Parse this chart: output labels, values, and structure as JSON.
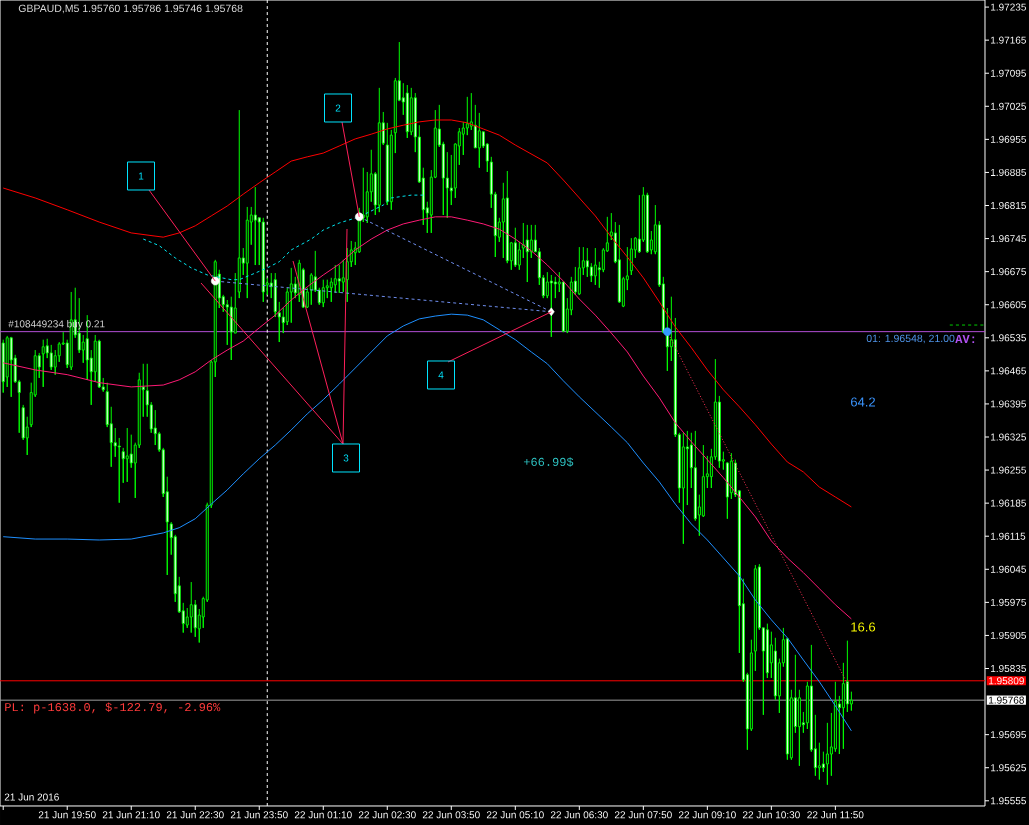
{
  "chart_data": {
    "type": "candlestick",
    "title": "GBPAUD,M5 1.95760 1.95786 1.95746 1.95768",
    "color": "#00ff00",
    "x": [
      "2016-06-21T18:30",
      "2016-06-21T18:35",
      "2016-06-21T18:40",
      "2016-06-21T18:45",
      "2016-06-21T18:50",
      "2016-06-21T18:55",
      "2016-06-21T19:00",
      "2016-06-21T19:05",
      "2016-06-21T19:10",
      "2016-06-21T19:15",
      "2016-06-21T19:20",
      "2016-06-21T19:25",
      "2016-06-21T19:30",
      "2016-06-21T19:35",
      "2016-06-21T19:40",
      "2016-06-21T19:45",
      "2016-06-21T19:50",
      "2016-06-21T19:55",
      "2016-06-21T20:00",
      "2016-06-21T20:05",
      "2016-06-21T20:10",
      "2016-06-21T20:15",
      "2016-06-21T20:20",
      "2016-06-21T20:25",
      "2016-06-21T20:30",
      "2016-06-21T20:35",
      "2016-06-21T20:40",
      "2016-06-21T20:45",
      "2016-06-21T20:50",
      "2016-06-21T20:55",
      "2016-06-21T21:00",
      "2016-06-21T21:05",
      "2016-06-21T21:10",
      "2016-06-21T21:15",
      "2016-06-21T21:20",
      "2016-06-21T21:25",
      "2016-06-21T21:30",
      "2016-06-21T21:35",
      "2016-06-21T21:40",
      "2016-06-21T21:45",
      "2016-06-21T21:50",
      "2016-06-21T21:55",
      "2016-06-21T22:00",
      "2016-06-21T22:05",
      "2016-06-21T22:10",
      "2016-06-21T22:15",
      "2016-06-21T22:20",
      "2016-06-21T22:25",
      "2016-06-21T22:30",
      "2016-06-21T22:35",
      "2016-06-21T22:40",
      "2016-06-21T22:45",
      "2016-06-21T22:50",
      "2016-06-21T22:55",
      "2016-06-21T23:00",
      "2016-06-21T23:05",
      "2016-06-21T23:10",
      "2016-06-21T23:15",
      "2016-06-21T23:20",
      "2016-06-21T23:25",
      "2016-06-21T23:30",
      "2016-06-21T23:35",
      "2016-06-21T23:40",
      "2016-06-21T23:45",
      "2016-06-21T23:50",
      "2016-06-21T23:55",
      "2016-06-22T00:00",
      "2016-06-22T00:05",
      "2016-06-22T00:10",
      "2016-06-22T00:15",
      "2016-06-22T00:20",
      "2016-06-22T00:25",
      "2016-06-22T00:30",
      "2016-06-22T00:35",
      "2016-06-22T00:40",
      "2016-06-22T00:45",
      "2016-06-22T00:50",
      "2016-06-22T00:55",
      "2016-06-22T01:00",
      "2016-06-22T01:05",
      "2016-06-22T01:10",
      "2016-06-22T01:15",
      "2016-06-22T01:20",
      "2016-06-22T01:25",
      "2016-06-22T01:30",
      "2016-06-22T01:35",
      "2016-06-22T01:40",
      "2016-06-22T01:45",
      "2016-06-22T01:50",
      "2016-06-22T01:55",
      "2016-06-22T02:00",
      "2016-06-22T02:05",
      "2016-06-22T02:10",
      "2016-06-22T02:15",
      "2016-06-22T02:20",
      "2016-06-22T02:25",
      "2016-06-22T02:30",
      "2016-06-22T02:35",
      "2016-06-22T02:40",
      "2016-06-22T02:45",
      "2016-06-22T02:50",
      "2016-06-22T02:55",
      "2016-06-22T03:00",
      "2016-06-22T03:05",
      "2016-06-22T03:10",
      "2016-06-22T03:15",
      "2016-06-22T03:20",
      "2016-06-22T03:25",
      "2016-06-22T03:30",
      "2016-06-22T03:35",
      "2016-06-22T03:40",
      "2016-06-22T03:45",
      "2016-06-22T03:50",
      "2016-06-22T03:55",
      "2016-06-22T04:00",
      "2016-06-22T04:05",
      "2016-06-22T04:10",
      "2016-06-22T04:15",
      "2016-06-22T04:20",
      "2016-06-22T04:25",
      "2016-06-22T04:30",
      "2016-06-22T04:35",
      "2016-06-22T04:40",
      "2016-06-22T04:45",
      "2016-06-22T04:50",
      "2016-06-22T04:55",
      "2016-06-22T05:00",
      "2016-06-22T05:05",
      "2016-06-22T05:10",
      "2016-06-22T05:15",
      "2016-06-22T05:20",
      "2016-06-22T05:25",
      "2016-06-22T05:30",
      "2016-06-22T05:35",
      "2016-06-22T05:40",
      "2016-06-22T05:45",
      "2016-06-22T05:50",
      "2016-06-22T05:55",
      "2016-06-22T06:00",
      "2016-06-22T06:05",
      "2016-06-22T06:10",
      "2016-06-22T06:15",
      "2016-06-22T06:20",
      "2016-06-22T06:25",
      "2016-06-22T06:30",
      "2016-06-22T06:35",
      "2016-06-22T06:40",
      "2016-06-22T06:45",
      "2016-06-22T06:50",
      "2016-06-22T06:55",
      "2016-06-22T07:00",
      "2016-06-22T07:05",
      "2016-06-22T07:10",
      "2016-06-22T07:15",
      "2016-06-22T07:20",
      "2016-06-22T07:25",
      "2016-06-22T07:30",
      "2016-06-22T07:35",
      "2016-06-22T07:40",
      "2016-06-22T07:45",
      "2016-06-22T07:50",
      "2016-06-22T07:55",
      "2016-06-22T08:00",
      "2016-06-22T08:05",
      "2016-06-22T08:10",
      "2016-06-22T08:15",
      "2016-06-22T08:20",
      "2016-06-22T08:25",
      "2016-06-22T08:30",
      "2016-06-22T08:35",
      "2016-06-22T08:40",
      "2016-06-22T08:45",
      "2016-06-22T08:50",
      "2016-06-22T08:55",
      "2016-06-22T09:00",
      "2016-06-22T09:05",
      "2016-06-22T09:10",
      "2016-06-22T09:15",
      "2016-06-22T09:20",
      "2016-06-22T09:25",
      "2016-06-22T09:30",
      "2016-06-22T09:35",
      "2016-06-22T09:40",
      "2016-06-22T09:45",
      "2016-06-22T09:50",
      "2016-06-22T09:55",
      "2016-06-22T10:00",
      "2016-06-22T10:05",
      "2016-06-22T10:10",
      "2016-06-22T10:15",
      "2016-06-22T10:20",
      "2016-06-22T10:25",
      "2016-06-22T10:30",
      "2016-06-22T10:35",
      "2016-06-22T10:40",
      "2016-06-22T10:45",
      "2016-06-22T10:50",
      "2016-06-22T10:55",
      "2016-06-22T11:00",
      "2016-06-22T11:05",
      "2016-06-22T11:10",
      "2016-06-22T11:15",
      "2016-06-22T11:20",
      "2016-06-22T11:25",
      "2016-06-22T11:30",
      "2016-06-22T11:35",
      "2016-06-22T11:40",
      "2016-06-22T11:45",
      "2016-06-22T11:50",
      "2016-06-22T11:55",
      "2016-06-22T12:00",
      "2016-06-22T12:05",
      "2016-06-22T12:10"
    ],
    "ohlc": [
      [
        1.96524,
        1.96531,
        1.96419,
        1.96442
      ],
      [
        1.96452,
        1.96539,
        1.96431,
        1.96535
      ],
      [
        1.96535,
        1.96537,
        1.9641,
        1.96488
      ],
      [
        1.96492,
        1.96499,
        1.9644,
        1.96442
      ],
      [
        1.96442,
        1.96446,
        1.96334,
        1.96419
      ],
      [
        1.96387,
        1.96393,
        1.96319,
        1.96323
      ],
      [
        1.96323,
        1.96368,
        1.96287,
        1.96346
      ],
      [
        1.96351,
        1.9644,
        1.96346,
        1.96419
      ],
      [
        1.96414,
        1.96509,
        1.9641,
        1.96497
      ],
      [
        1.96497,
        1.96503,
        1.9645,
        1.96473
      ],
      [
        1.96501,
        1.96531,
        1.96431,
        1.96516
      ],
      [
        1.96518,
        1.96533,
        1.96492,
        1.96503
      ],
      [
        1.96503,
        1.9652,
        1.96467,
        1.96473
      ],
      [
        1.96473,
        1.96509,
        1.96457,
        1.96497
      ],
      [
        1.96497,
        1.96526,
        1.96484,
        1.96522
      ],
      [
        1.96522,
        1.96547,
        1.9652,
        1.96524
      ],
      [
        1.96524,
        1.96531,
        1.96471,
        1.96478
      ],
      [
        1.96473,
        1.96632,
        1.96467,
        1.96573
      ],
      [
        1.96573,
        1.96641,
        1.96535,
        1.96541
      ],
      [
        1.96545,
        1.96619,
        1.96503,
        1.96509
      ],
      [
        1.96509,
        1.96541,
        1.96482,
        1.96526
      ],
      [
        1.96533,
        1.96583,
        1.96446,
        1.96488
      ],
      [
        1.96492,
        1.96509,
        1.96393,
        1.96463
      ],
      [
        1.96463,
        1.96541,
        1.96442,
        1.96528
      ],
      [
        1.96528,
        1.96531,
        1.96429,
        1.96431
      ],
      [
        1.96431,
        1.9645,
        1.96421,
        1.96425
      ],
      [
        1.96421,
        1.9644,
        1.96346,
        1.96351
      ],
      [
        1.96353,
        1.96389,
        1.96262,
        1.96313
      ],
      [
        1.96313,
        1.96344,
        1.96283,
        1.96306
      ],
      [
        1.96306,
        1.96323,
        1.96186,
        1.96304
      ],
      [
        1.96294,
        1.96302,
        1.96228,
        1.96279
      ],
      [
        1.96279,
        1.96344,
        1.9623,
        1.96285
      ],
      [
        1.96289,
        1.9633,
        1.9626,
        1.9627
      ],
      [
        1.9627,
        1.96313,
        1.96196,
        1.96308
      ],
      [
        1.96308,
        1.96461,
        1.96302,
        1.96446
      ],
      [
        1.96431,
        1.9648,
        1.96368,
        1.96425
      ],
      [
        1.96423,
        1.9648,
        1.96368,
        1.96393
      ],
      [
        1.96393,
        1.96399,
        1.96334,
        1.96342
      ],
      [
        1.96344,
        1.96382,
        1.96308,
        1.96332
      ],
      [
        1.96332,
        1.96336,
        1.96294,
        1.96298
      ],
      [
        1.96298,
        1.96302,
        1.96198,
        1.96205
      ],
      [
        1.96209,
        1.96241,
        1.96033,
        1.96145
      ],
      [
        1.96141,
        1.96145,
        1.96076,
        1.96112
      ],
      [
        1.96114,
        1.96118,
        1.95976,
        1.95993
      ],
      [
        1.9601,
        1.96029,
        1.95953,
        1.95955
      ],
      [
        1.95957,
        1.95974,
        1.95911,
        1.9593
      ],
      [
        1.95927,
        1.95963,
        1.95921,
        1.95944
      ],
      [
        1.95944,
        1.96018,
        1.95911,
        1.9597
      ],
      [
        1.9597,
        1.9598,
        1.95902,
        1.95921
      ],
      [
        1.95919,
        1.95961,
        1.9589,
        1.95948
      ],
      [
        1.95944,
        1.95987,
        1.95921,
        1.95983
      ],
      [
        1.9598,
        1.96186,
        1.95976,
        1.96181
      ],
      [
        1.96181,
        1.96488,
        1.96175,
        1.96484
      ],
      [
        1.96484,
        1.967,
        1.96452,
        1.96696
      ],
      [
        1.9667,
        1.96679,
        1.96598,
        1.96619
      ],
      [
        1.96622,
        1.96626,
        1.9659,
        1.96605
      ],
      [
        1.96605,
        1.96615,
        1.9652,
        1.966
      ],
      [
        1.966,
        1.96622,
        1.96488,
        1.96547
      ],
      [
        1.96545,
        1.96672,
        1.96545,
        1.96598
      ],
      [
        1.96632,
        1.97017,
        1.96619,
        1.96704
      ],
      [
        1.96704,
        1.96725,
        1.96668,
        1.96693
      ],
      [
        1.96693,
        1.96812,
        1.96619,
        1.96784
      ],
      [
        1.9678,
        1.96812,
        1.96732,
        1.96795
      ],
      [
        1.96795,
        1.96854,
        1.96689,
        1.96784
      ],
      [
        1.96789,
        1.96789,
        1.96689,
        1.9678
      ],
      [
        1.9678,
        1.96789,
        1.96611,
        1.96632
      ],
      [
        1.96647,
        1.96662,
        1.96626,
        1.96651
      ],
      [
        1.96651,
        1.96672,
        1.96619,
        1.96643
      ],
      [
        1.96658,
        1.96672,
        1.96579,
        1.9659
      ],
      [
        1.96588,
        1.96611,
        1.96526,
        1.96579
      ],
      [
        1.96579,
        1.96598,
        1.96545,
        1.96567
      ],
      [
        1.96569,
        1.96641,
        1.96562,
        1.96632
      ],
      [
        1.96632,
        1.96683,
        1.96567,
        1.96649
      ],
      [
        1.96649,
        1.96664,
        1.96619,
        1.9663
      ],
      [
        1.96626,
        1.967,
        1.96611,
        1.96693
      ],
      [
        1.96679,
        1.96683,
        1.96598,
        1.966
      ],
      [
        1.966,
        1.96641,
        1.96598,
        1.96632
      ],
      [
        1.96636,
        1.96672,
        1.96605,
        1.96668
      ],
      [
        1.96664,
        1.96719,
        1.96632,
        1.96636
      ],
      [
        1.96636,
        1.96641,
        1.96605,
        1.96609
      ],
      [
        1.96609,
        1.96658,
        1.966,
        1.96641
      ],
      [
        1.96641,
        1.96658,
        1.96619,
        1.96645
      ],
      [
        1.96641,
        1.96662,
        1.96611,
        1.96653
      ],
      [
        1.96647,
        1.96689,
        1.9663,
        1.9666
      ],
      [
        1.9666,
        1.96689,
        1.9663,
        1.96655
      ],
      [
        1.96653,
        1.967,
        1.96632,
        1.96662
      ],
      [
        1.96658,
        1.96725,
        1.96611,
        1.96696
      ],
      [
        1.96696,
        1.9674,
        1.96685,
        1.96721
      ],
      [
        1.96715,
        1.96738,
        1.96689,
        1.96725
      ],
      [
        1.96717,
        1.9681,
        1.96715,
        1.96784
      ],
      [
        1.96789,
        1.96895,
        1.9678,
        1.96795
      ],
      [
        1.96791,
        1.96886,
        1.96778,
        1.96844
      ],
      [
        1.96844,
        1.96933,
        1.96823,
        1.96882
      ],
      [
        1.96882,
        1.96886,
        1.96795,
        1.96816
      ],
      [
        1.96816,
        1.97064,
        1.96801,
        1.9699
      ],
      [
        1.9699,
        1.97013,
        1.96943,
        1.96947
      ],
      [
        1.96943,
        1.9699,
        1.96816,
        1.96823
      ],
      [
        1.96823,
        1.96975,
        1.96806,
        1.96964
      ],
      [
        1.96969,
        1.97085,
        1.96926,
        1.97079
      ],
      [
        1.97079,
        1.97161,
        1.97036,
        1.97038
      ],
      [
        1.97043,
        1.97074,
        1.97007,
        1.97034
      ],
      [
        1.97053,
        1.9707,
        1.96958,
        1.96971
      ],
      [
        1.96971,
        1.97064,
        1.96964,
        1.97043
      ],
      [
        1.97043,
        1.97053,
        1.96928,
        1.9696
      ],
      [
        1.9696,
        1.96985,
        1.96863,
        1.96865
      ],
      [
        1.96873,
        1.96895,
        1.96774,
        1.96806
      ],
      [
        1.9681,
        1.96823,
        1.96757,
        1.96799
      ],
      [
        1.96795,
        1.9689,
        1.96757,
        1.96875
      ],
      [
        1.96875,
        1.97017,
        1.96873,
        1.96979
      ],
      [
        1.96977,
        1.97028,
        1.96939,
        1.96943
      ],
      [
        1.96945,
        1.9695,
        1.96795,
        1.96873
      ],
      [
        1.96873,
        1.96928,
        1.96789,
        1.96852
      ],
      [
        1.96852,
        1.96922,
        1.96816,
        1.96846
      ],
      [
        1.96852,
        1.96947,
        1.96831,
        1.96945
      ],
      [
        1.96941,
        1.96979,
        1.96901,
        1.96971
      ],
      [
        1.96966,
        1.96992,
        1.96922,
        1.96979
      ],
      [
        1.96979,
        1.97045,
        1.96964,
        1.96988
      ],
      [
        1.96983,
        1.97053,
        1.96975,
        1.96992
      ],
      [
        1.96985,
        1.97028,
        1.96937,
        1.96937
      ],
      [
        1.96937,
        1.97011,
        1.96895,
        1.96973
      ],
      [
        1.96971,
        1.96971,
        1.96937,
        1.96941
      ],
      [
        1.96945,
        1.96947,
        1.96886,
        1.96909
      ],
      [
        1.96907,
        1.96918,
        1.9681,
        1.96839
      ],
      [
        1.96839,
        1.96844,
        1.96706,
        1.96751
      ],
      [
        1.96748,
        1.96789,
        1.96738,
        1.9678
      ],
      [
        1.9678,
        1.96863,
        1.96704,
        1.96829
      ],
      [
        1.96831,
        1.96888,
        1.96693,
        1.96698
      ],
      [
        1.96698,
        1.96738,
        1.96679,
        1.96736
      ],
      [
        1.96736,
        1.96768,
        1.96685,
        1.96689
      ],
      [
        1.96689,
        1.96738,
        1.96679,
        1.96721
      ],
      [
        1.96725,
        1.96778,
        1.96704,
        1.96732
      ],
      [
        1.96742,
        1.96774,
        1.96653,
        1.96717
      ],
      [
        1.96717,
        1.96774,
        1.96704,
        1.96742
      ],
      [
        1.96742,
        1.96774,
        1.96717,
        1.96717
      ],
      [
        1.96717,
        1.96725,
        1.96647,
        1.96662
      ],
      [
        1.96662,
        1.96668,
        1.96619,
        1.96624
      ],
      [
        1.96624,
        1.96674,
        1.96619,
        1.96653
      ],
      [
        1.96655,
        1.96668,
        1.96537,
        1.96651
      ],
      [
        1.96653,
        1.96664,
        1.96619,
        1.96649
      ],
      [
        1.96649,
        1.96674,
        1.96632,
        1.96653
      ],
      [
        1.96653,
        1.96653,
        1.96547,
        1.96549
      ],
      [
        1.96549,
        1.96619,
        1.96545,
        1.96596
      ],
      [
        1.96594,
        1.96664,
        1.96583,
        1.96653
      ],
      [
        1.96655,
        1.96685,
        1.96626,
        1.96632
      ],
      [
        1.96628,
        1.96727,
        1.96626,
        1.96683
      ],
      [
        1.96683,
        1.96727,
        1.96668,
        1.96698
      ],
      [
        1.96698,
        1.96725,
        1.96664,
        1.96685
      ],
      [
        1.96685,
        1.96693,
        1.96653,
        1.96666
      ],
      [
        1.96666,
        1.96725,
        1.96647,
        1.96689
      ],
      [
        1.96683,
        1.96696,
        1.96641,
        1.96679
      ],
      [
        1.96679,
        1.96725,
        1.96674,
        1.96721
      ],
      [
        1.96719,
        1.96791,
        1.96717,
        1.96736
      ],
      [
        1.96751,
        1.96799,
        1.96742,
        1.96759
      ],
      [
        1.96757,
        1.9678,
        1.96693,
        1.96696
      ],
      [
        1.967,
        1.96774,
        1.96609,
        1.96611
      ],
      [
        1.96602,
        1.96664,
        1.966,
        1.9666
      ],
      [
        1.96658,
        1.96727,
        1.96636,
        1.96666
      ],
      [
        1.96677,
        1.96746,
        1.96668,
        1.96723
      ],
      [
        1.96721,
        1.96748,
        1.96704,
        1.96746
      ],
      [
        1.96744,
        1.96837,
        1.96715,
        1.96717
      ],
      [
        1.96742,
        1.96854,
        1.96738,
        1.96837
      ],
      [
        1.96837,
        1.96842,
        1.96715,
        1.96717
      ],
      [
        1.96721,
        1.96761,
        1.96712,
        1.96742
      ],
      [
        1.96717,
        1.96816,
        1.96712,
        1.96774
      ],
      [
        1.96774,
        1.96782,
        1.96643,
        1.96647
      ],
      [
        1.96649,
        1.96664,
        1.96545,
        1.96547
      ],
      [
        1.96552,
        1.96598,
        1.96465,
        1.96516
      ],
      [
        1.96516,
        1.96622,
        1.96486,
        1.96531
      ],
      [
        1.96531,
        1.96577,
        1.96325,
        1.9633
      ],
      [
        1.9633,
        1.96334,
        1.96186,
        1.96217
      ],
      [
        1.96217,
        1.96334,
        1.96099,
        1.96304
      ],
      [
        1.96304,
        1.96338,
        1.96181,
        1.963
      ],
      [
        1.96308,
        1.96334,
        1.96217,
        1.9626
      ],
      [
        1.9626,
        1.96338,
        1.96148,
        1.96152
      ],
      [
        1.9616,
        1.96203,
        1.96116,
        1.96177
      ],
      [
        1.96158,
        1.96308,
        1.96156,
        1.96241
      ],
      [
        1.96241,
        1.96285,
        1.96217,
        1.96247
      ],
      [
        1.96241,
        1.963,
        1.96217,
        1.96283
      ],
      [
        1.96283,
        1.9649,
        1.96277,
        1.96399
      ],
      [
        1.96399,
        1.96412,
        1.9626,
        1.96274
      ],
      [
        1.96274,
        1.96294,
        1.96256,
        1.96277
      ],
      [
        1.9627,
        1.96272,
        1.96152,
        1.96198
      ],
      [
        1.96207,
        1.96291,
        1.96194,
        1.96274
      ],
      [
        1.9627,
        1.96277,
        1.96198,
        1.96203
      ],
      [
        1.96211,
        1.96213,
        1.95868,
        1.95968
      ],
      [
        1.95972,
        1.96025,
        1.95807,
        1.95811
      ],
      [
        1.95822,
        1.95826,
        1.95663,
        1.95707
      ],
      [
        1.95707,
        1.95896,
        1.95703,
        1.95868
      ],
      [
        1.95872,
        1.96054,
        1.9583,
        1.96046
      ],
      [
        1.9605,
        1.96056,
        1.95917,
        1.95921
      ],
      [
        1.95921,
        1.95921,
        1.95737,
        1.95872
      ],
      [
        1.95917,
        1.9593,
        1.95815,
        1.95826
      ],
      [
        1.95847,
        1.95913,
        1.95815,
        1.95885
      ],
      [
        1.95872,
        1.959,
        1.95769,
        1.95777
      ],
      [
        1.95777,
        1.95856,
        1.95741,
        1.95847
      ],
      [
        1.95847,
        1.95921,
        1.95839,
        1.95896
      ],
      [
        1.95898,
        1.959,
        1.95642,
        1.95654
      ],
      [
        1.95646,
        1.9579,
        1.95642,
        1.95773
      ],
      [
        1.95773,
        1.95864,
        1.95699,
        1.95712
      ],
      [
        1.95712,
        1.9579,
        1.95629,
        1.95773
      ],
      [
        1.9572,
        1.95743,
        1.95699,
        1.95716
      ],
      [
        1.9572,
        1.95807,
        1.95707,
        1.95798
      ],
      [
        1.95798,
        1.95885,
        1.95659,
        1.95663
      ],
      [
        1.95665,
        1.95737,
        1.95608,
        1.95625
      ],
      [
        1.95625,
        1.95678,
        1.956,
        1.95629
      ],
      [
        1.95633,
        1.95659,
        1.95616,
        1.95625
      ],
      [
        1.95633,
        1.9572,
        1.95589,
        1.95654
      ],
      [
        1.95654,
        1.95741,
        1.95608,
        1.95669
      ],
      [
        1.95665,
        1.95807,
        1.95659,
        1.95765
      ],
      [
        1.9576,
        1.95777,
        1.95654,
        1.95752
      ],
      [
        1.95752,
        1.95847,
        1.95665,
        1.95803
      ],
      [
        1.95807,
        1.95894,
        1.95743,
        1.9576
      ],
      [
        1.9576,
        1.95786,
        1.95746,
        1.95768
      ]
    ],
    "series": [
      {
        "type": "line",
        "color": "#ff0000",
        "x": [
          "2016-06-21T18:30",
          "2016-06-21T19:10",
          "2016-06-21T19:50",
          "2016-06-21T20:30",
          "2016-06-21T21:10",
          "2016-06-21T21:50",
          "2016-06-21T22:10",
          "2016-06-21T22:30",
          "2016-06-21T22:50",
          "2016-06-21T23:10",
          "2016-06-21T23:30",
          "2016-06-21T23:50",
          "2016-06-22T00:10",
          "2016-06-22T00:30",
          "2016-06-22T00:50",
          "2016-06-22T01:10",
          "2016-06-22T01:30",
          "2016-06-22T01:50",
          "2016-06-22T02:10",
          "2016-06-22T02:30",
          "2016-06-22T02:50",
          "2016-06-22T03:10",
          "2016-06-22T03:30",
          "2016-06-22T03:50",
          "2016-06-22T04:10",
          "2016-06-22T04:30",
          "2016-06-22T04:50",
          "2016-06-22T05:10",
          "2016-06-22T05:30",
          "2016-06-22T05:50",
          "2016-06-22T06:10",
          "2016-06-22T06:30",
          "2016-06-22T06:50",
          "2016-06-22T07:10",
          "2016-06-22T07:30",
          "2016-06-22T07:50",
          "2016-06-22T08:10",
          "2016-06-22T08:30",
          "2016-06-22T08:50",
          "2016-06-22T09:10",
          "2016-06-22T09:30",
          "2016-06-22T09:50",
          "2016-06-22T10:10",
          "2016-06-22T10:30",
          "2016-06-22T10:50",
          "2016-06-22T11:10",
          "2016-06-22T11:30",
          "2016-06-22T11:50",
          "2016-06-22T12:10"
        ],
        "values": [
          1.96852,
          1.96831,
          1.96806,
          1.9678,
          1.96757,
          1.96748,
          1.96757,
          1.96772,
          1.96793,
          1.96814,
          1.96839,
          1.96863,
          1.96886,
          1.96909,
          1.96918,
          1.96926,
          1.96941,
          1.96956,
          1.96966,
          1.96977,
          1.96985,
          1.96992,
          1.96996,
          1.96996,
          1.9699,
          1.96977,
          1.96964,
          1.96943,
          1.96924,
          1.96905,
          1.96869,
          1.96831,
          1.96793,
          1.96748,
          1.96706,
          1.96662,
          1.96611,
          1.96558,
          1.96514,
          1.96467,
          1.96425,
          1.96389,
          1.96351,
          1.9631,
          1.96272,
          1.96251,
          1.96219,
          1.96198,
          1.96177
        ]
      },
      {
        "type": "line",
        "color": "#ff1a75",
        "x": [
          "2016-06-21T18:30",
          "2016-06-21T19:10",
          "2016-06-21T19:50",
          "2016-06-21T20:30",
          "2016-06-21T21:10",
          "2016-06-21T21:50",
          "2016-06-21T22:10",
          "2016-06-21T22:30",
          "2016-06-21T22:50",
          "2016-06-21T23:10",
          "2016-06-21T23:30",
          "2016-06-21T23:50",
          "2016-06-22T00:10",
          "2016-06-22T00:30",
          "2016-06-22T00:50",
          "2016-06-22T01:10",
          "2016-06-22T01:30",
          "2016-06-22T01:50",
          "2016-06-22T02:10",
          "2016-06-22T02:30",
          "2016-06-22T02:50",
          "2016-06-22T03:10",
          "2016-06-22T03:30",
          "2016-06-22T03:50",
          "2016-06-22T04:10",
          "2016-06-22T04:30",
          "2016-06-22T04:50",
          "2016-06-22T05:10",
          "2016-06-22T05:30",
          "2016-06-22T05:50",
          "2016-06-22T06:10",
          "2016-06-22T06:30",
          "2016-06-22T06:50",
          "2016-06-22T07:10",
          "2016-06-22T07:30",
          "2016-06-22T07:50",
          "2016-06-22T08:10",
          "2016-06-22T08:30",
          "2016-06-22T08:50",
          "2016-06-22T09:10",
          "2016-06-22T09:30",
          "2016-06-22T09:50",
          "2016-06-22T10:10",
          "2016-06-22T10:30",
          "2016-06-22T10:50",
          "2016-06-22T11:10",
          "2016-06-22T11:30",
          "2016-06-22T11:50",
          "2016-06-22T12:10"
        ],
        "values": [
          1.96482,
          1.96467,
          1.96457,
          1.9644,
          1.96431,
          1.96435,
          1.96446,
          1.96463,
          1.96488,
          1.96509,
          1.96528,
          1.96556,
          1.96583,
          1.96615,
          1.96643,
          1.96668,
          1.96691,
          1.96721,
          1.96744,
          1.96763,
          1.96776,
          1.96784,
          1.96791,
          1.96791,
          1.96784,
          1.96776,
          1.96765,
          1.96744,
          1.96719,
          1.96689,
          1.96655,
          1.96617,
          1.96583,
          1.96545,
          1.96505,
          1.96454,
          1.96408,
          1.96355,
          1.96315,
          1.96277,
          1.96239,
          1.96198,
          1.96156,
          1.96105,
          1.96069,
          1.96038,
          1.96004,
          1.9597,
          1.9594
        ]
      },
      {
        "type": "line",
        "color": "#1e90ff",
        "x": [
          "2016-06-21T18:30",
          "2016-06-21T19:10",
          "2016-06-21T19:50",
          "2016-06-21T20:30",
          "2016-06-21T21:10",
          "2016-06-21T21:50",
          "2016-06-21T22:10",
          "2016-06-21T22:30",
          "2016-06-21T22:50",
          "2016-06-21T23:10",
          "2016-06-21T23:30",
          "2016-06-21T23:50",
          "2016-06-22T00:10",
          "2016-06-22T00:30",
          "2016-06-22T00:50",
          "2016-06-22T01:10",
          "2016-06-22T01:30",
          "2016-06-22T01:50",
          "2016-06-22T02:10",
          "2016-06-22T02:30",
          "2016-06-22T02:50",
          "2016-06-22T03:10",
          "2016-06-22T03:30",
          "2016-06-22T03:50",
          "2016-06-22T04:10",
          "2016-06-22T04:30",
          "2016-06-22T04:50",
          "2016-06-22T05:10",
          "2016-06-22T05:30",
          "2016-06-22T05:50",
          "2016-06-22T06:10",
          "2016-06-22T06:30",
          "2016-06-22T06:50",
          "2016-06-22T07:10",
          "2016-06-22T07:30",
          "2016-06-22T07:50",
          "2016-06-22T08:10",
          "2016-06-22T08:30",
          "2016-06-22T08:50",
          "2016-06-22T09:10",
          "2016-06-22T09:30",
          "2016-06-22T09:50",
          "2016-06-22T10:10",
          "2016-06-22T10:30",
          "2016-06-22T10:50",
          "2016-06-22T11:10",
          "2016-06-22T11:30",
          "2016-06-22T11:50",
          "2016-06-22T12:10"
        ],
        "values": [
          1.96114,
          1.96109,
          1.96109,
          1.96107,
          1.96109,
          1.96122,
          1.96133,
          1.96152,
          1.96183,
          1.96213,
          1.96247,
          1.96279,
          1.96308,
          1.9634,
          1.96374,
          1.96404,
          1.96437,
          1.96471,
          1.96505,
          1.96539,
          1.9656,
          1.96575,
          1.96581,
          1.96585,
          1.96583,
          1.96573,
          1.96552,
          1.96531,
          1.96505,
          1.9648,
          1.96444,
          1.9641,
          1.96378,
          1.96346,
          1.96313,
          1.9627,
          1.9623,
          1.96183,
          1.96141,
          1.96107,
          1.96069,
          1.96031,
          1.9598,
          1.95938,
          1.959,
          1.95853,
          1.95807,
          1.95756,
          1.95703
        ]
      },
      {
        "type": "line",
        "color": "#00e5ee",
        "line_style": "dashed",
        "x": [
          "2016-06-21T21:25",
          "2016-06-21T21:45",
          "2016-06-21T22:05",
          "2016-06-21T22:25",
          "2016-06-21T22:45",
          "2016-06-21T23:15",
          "2016-06-21T23:25",
          "2016-06-21T23:45",
          "2016-06-22T00:00",
          "2016-06-22T00:15",
          "2016-06-22T00:30",
          "2016-06-22T00:55",
          "2016-06-22T01:10",
          "2016-06-22T01:30",
          "2016-06-22T01:55",
          "2016-06-22T02:25",
          "2016-06-22T02:35",
          "2016-06-22T03:00",
          "2016-06-22T03:15"
        ],
        "values": [
          1.96744,
          1.9673,
          1.96704,
          1.96683,
          1.96668,
          1.96658,
          1.96658,
          1.96672,
          1.96683,
          1.96696,
          1.96721,
          1.96744,
          1.96763,
          1.96778,
          1.96791,
          1.96816,
          1.96831,
          1.96837,
          1.96837
        ]
      },
      {
        "type": "line",
        "color": "#00cc00",
        "line_style": "dashed",
        "x": [
          "2016-06-22T14:13",
          "2016-06-22T14:55"
        ],
        "values": [
          1.96562,
          1.96562
        ]
      },
      {
        "type": "line",
        "color": "#6f8ff0",
        "line_style": "dashed",
        "x": [
          "2016-06-21T22:55",
          "2016-06-22T05:55"
        ],
        "values": [
          1.96655,
          1.9659
        ]
      },
      {
        "type": "line",
        "color": "#6f8ff0",
        "line_style": "dashed",
        "x": [
          "2016-06-22T01:55",
          "2016-06-22T05:55"
        ],
        "values": [
          1.96791,
          1.9659
        ]
      },
      {
        "type": "line",
        "color": "#ff3355",
        "line_style": "dotted",
        "x": [
          "2016-06-22T08:20",
          "2016-06-22T12:05"
        ],
        "values": [
          1.96548,
          1.95803
        ]
      },
      {
        "type": "scatter",
        "marker": "circle",
        "color": "#ffffff",
        "x": [
          "2016-06-21T22:55",
          "2016-06-22T01:55"
        ],
        "values": [
          1.96655,
          1.96791
        ]
      },
      {
        "type": "scatter",
        "marker": "diamond",
        "color": "#ffffff",
        "x": [
          "2016-06-22T05:55"
        ],
        "values": [
          1.9659
        ]
      },
      {
        "type": "scatter",
        "marker": "circle",
        "color": "#3399ff",
        "x": [
          "2016-06-22T08:20"
        ],
        "values": [
          1.96548
        ]
      }
    ],
    "xlim": [
      "2016-06-21T18:26",
      "2016-06-22T14:57"
    ],
    "ylim": [
      1.95544,
      1.9725
    ],
    "xticks": [
      {
        "value": "2016-06-21T18:30",
        "label": null
      },
      {
        "value": "2016-06-21T19:50",
        "label": "21 Jun 19:50"
      },
      {
        "value": "2016-06-21T21:10",
        "label": "21 Jun 21:10"
      },
      {
        "value": "2016-06-21T22:30",
        "label": "21 Jun 22:30"
      },
      {
        "value": "2016-06-21T23:50",
        "label": "21 Jun 23:50"
      },
      {
        "value": "2016-06-22T01:10",
        "label": "22 Jun 01:10"
      },
      {
        "value": "2016-06-22T02:30",
        "label": "22 Jun 02:30"
      },
      {
        "value": "2016-06-22T03:50",
        "label": "22 Jun 03:50"
      },
      {
        "value": "2016-06-22T05:10",
        "label": "22 Jun 05:10"
      },
      {
        "value": "2016-06-22T06:30",
        "label": "22 Jun 06:30"
      },
      {
        "value": "2016-06-22T07:50",
        "label": "22 Jun 07:50"
      },
      {
        "value": "2016-06-22T09:10",
        "label": "22 Jun 09:10"
      },
      {
        "value": "2016-06-22T10:30",
        "label": "22 Jun 10:30"
      },
      {
        "value": "2016-06-22T11:50",
        "label": "22 Jun 11:50"
      }
    ],
    "yticks": [
      1.95555,
      1.95625,
      1.95695,
      1.95835,
      1.95905,
      1.95975,
      1.96045,
      1.96115,
      1.96185,
      1.96255,
      1.96325,
      1.96395,
      1.96465,
      1.96535,
      1.96605,
      1.96675,
      1.96745,
      1.96815,
      1.96885,
      1.96955,
      1.97025,
      1.97095,
      1.97165,
      1.97235
    ],
    "ref_lines": [
      {
        "axis": "y",
        "value": 1.96548,
        "label": "#108449234 buy 0.21",
        "color": "#b44fd6"
      },
      {
        "axis": "y",
        "value": 1.95809,
        "label": "1.95809",
        "color": "#ff0000"
      },
      {
        "axis": "y",
        "value": 1.95768,
        "label": "1.95768",
        "color": "#a0a0a0"
      },
      {
        "axis": "x",
        "value": "2016-06-22T00:00",
        "color": "#ffffff",
        "line_style": "dashed"
      }
    ],
    "annotations": [
      "PL: p-1638.0, $-122.79, -2.96%",
      "01: 1.96548, 21.00",
      "AV:",
      {
        "text": "1",
        "x": "2016-06-21T22:55",
        "y": 1.96655
      },
      {
        "text": "2",
        "x": "2016-06-22T01:55",
        "y": 1.96791
      },
      "3",
      {
        "text": "4",
        "x": "2016-06-22T05:55",
        "y": 1.9659
      },
      "+66.99$",
      "64.2",
      "16.6",
      "21 Jun 2016"
    ]
  }
}
